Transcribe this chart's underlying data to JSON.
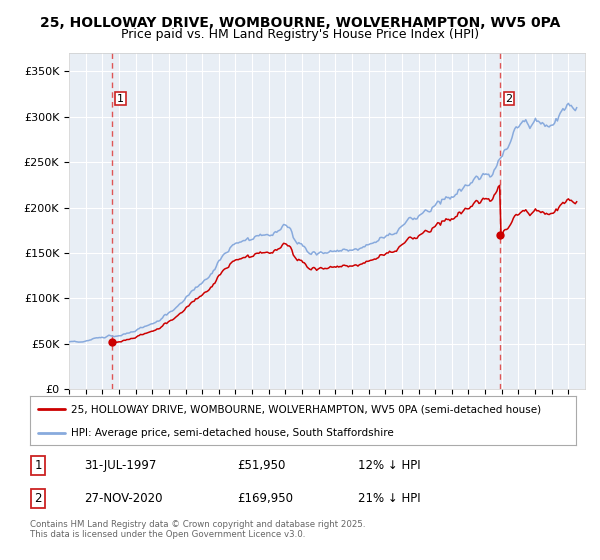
{
  "title1": "25, HOLLOWAY DRIVE, WOMBOURNE, WOLVERHAMPTON, WV5 0PA",
  "title2": "Price paid vs. HM Land Registry's House Price Index (HPI)",
  "legend_label1": "25, HOLLOWAY DRIVE, WOMBOURNE, WOLVERHAMPTON, WV5 0PA (semi-detached house)",
  "legend_label2": "HPI: Average price, semi-detached house, South Staffordshire",
  "purchase1_date": "31-JUL-1997",
  "purchase1_price": "£51,950",
  "purchase1_hpi": "12% ↓ HPI",
  "purchase1_year": 1997.58,
  "purchase1_value": 51950,
  "purchase2_date": "27-NOV-2020",
  "purchase2_price": "£169,950",
  "purchase2_hpi": "21% ↓ HPI",
  "purchase2_year": 2020.92,
  "purchase2_value": 169950,
  "ylabel_vals": [
    0,
    50000,
    100000,
    150000,
    200000,
    250000,
    300000,
    350000
  ],
  "ylabel_labels": [
    "£0",
    "£50K",
    "£100K",
    "£150K",
    "£200K",
    "£250K",
    "£300K",
    "£350K"
  ],
  "xmin": 1995,
  "xmax": 2026,
  "ymin": 0,
  "ymax": 370000,
  "line_color_price": "#cc0000",
  "line_color_hpi": "#88aadd",
  "marker_color": "#cc0000",
  "dashed_color": "#dd4444",
  "bg_color": "#e8eef5",
  "grid_color": "#ffffff",
  "footer_text": "Contains HM Land Registry data © Crown copyright and database right 2025.\nThis data is licensed under the Open Government Licence v3.0."
}
